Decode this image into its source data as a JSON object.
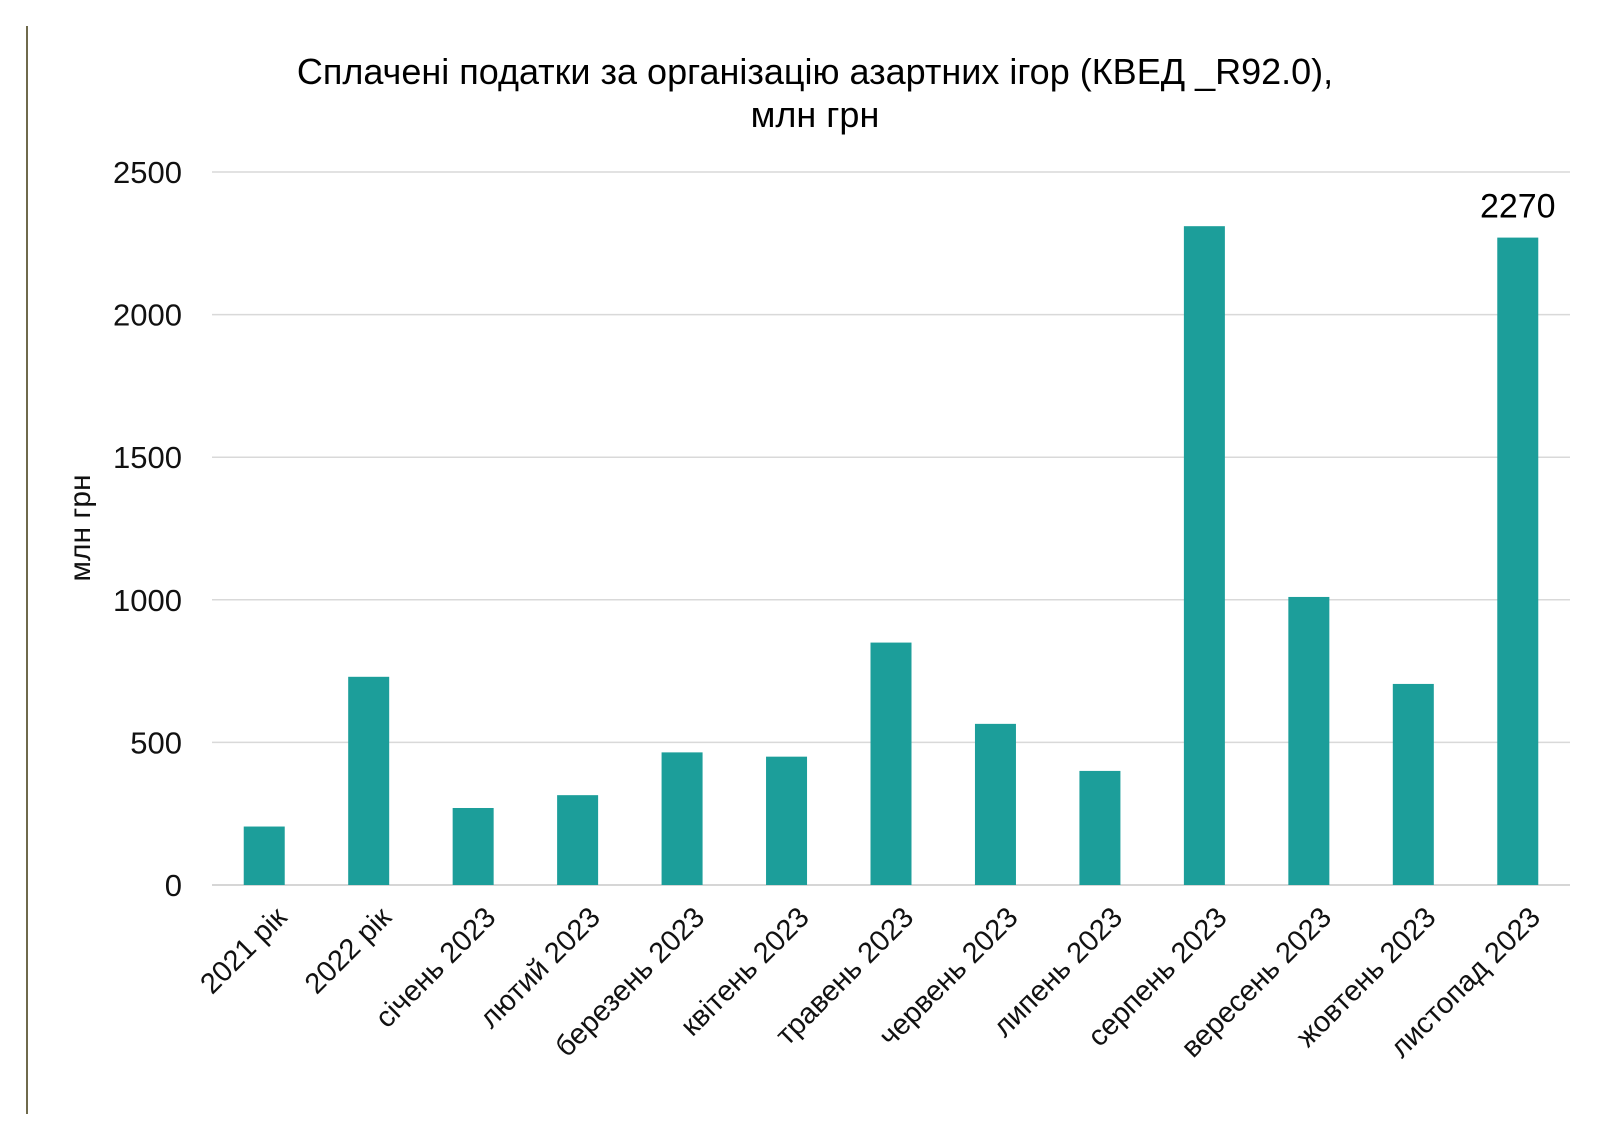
{
  "chart_data": {
    "type": "bar",
    "title": [
      "Сплачені податки за організацію азартних ігор (КВЕД _R92.0),",
      "млн грн"
    ],
    "xlabel": "",
    "ylabel": "млн грн",
    "ylim": [
      0,
      2500
    ],
    "yticks": [
      0,
      500,
      1000,
      1500,
      2000,
      2500
    ],
    "grid": true,
    "categories": [
      "2021 рік",
      "2022 рік",
      "січень 2023",
      "лютий 2023",
      "березень 2023",
      "квітень 2023",
      "травень 2023",
      "червень 2023",
      "липень 2023",
      "серпень 2023",
      "вересень 2023",
      "жовтень 2023",
      "листопад 2023"
    ],
    "values": [
      205,
      730,
      270,
      315,
      465,
      450,
      850,
      565,
      400,
      2310,
      1010,
      705,
      2270
    ],
    "data_labels": [
      {
        "index": 12,
        "text": "2270"
      }
    ],
    "color": "#1c9e9a"
  }
}
